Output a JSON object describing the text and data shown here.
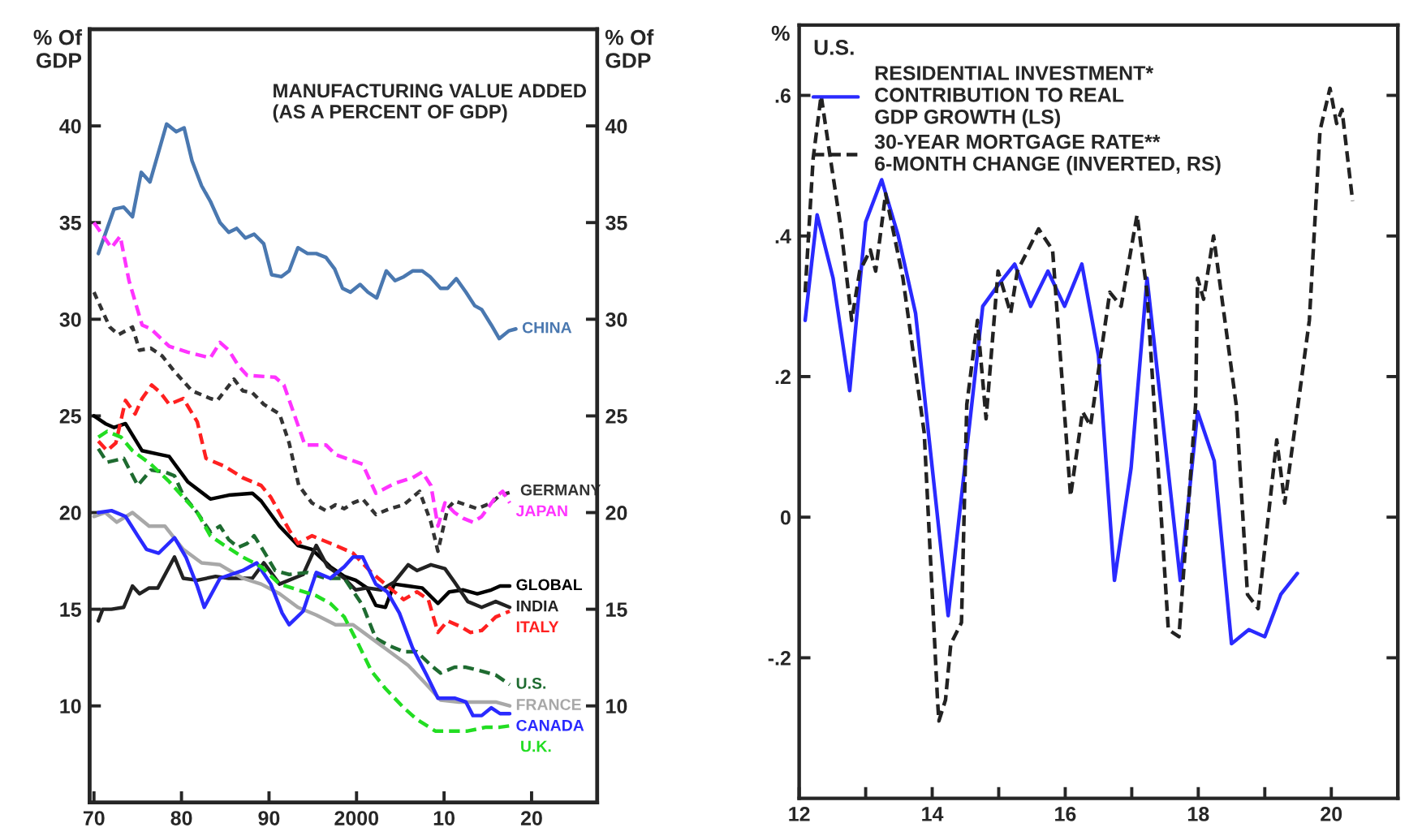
{
  "chart_data": [
    {
      "type": "line",
      "title": "MANUFACTURING VALUE ADDED\n(AS A PERCENT OF GDP)",
      "ylabel": "% Of\nGDP",
      "y2label": "% Of\nGDP",
      "xlim": [
        1969.5,
        2027.5
      ],
      "xticks": [
        {
          "value": 1970,
          "label": "70"
        },
        {
          "value": 1980,
          "label": "80"
        },
        {
          "value": 1990,
          "label": "90"
        },
        {
          "value": 2000,
          "label": "2000"
        },
        {
          "value": 2010,
          "label": "10"
        },
        {
          "value": 2020,
          "label": "20"
        }
      ],
      "ylim": [
        5,
        45
      ],
      "yticks": [
        10,
        15,
        20,
        25,
        30,
        35,
        40
      ],
      "y2lim": [
        5,
        45
      ],
      "y2ticks": [
        10,
        15,
        20,
        25,
        30,
        35,
        40
      ],
      "grid": false,
      "legend": false,
      "series": [
        {
          "name": "CHINA",
          "color": "#4a78b0",
          "line_style": "solid",
          "x": [
            1970.5,
            1972.3,
            1973.4,
            1974.4,
            1975.4,
            1976.4,
            1978.3,
            1979.4,
            1980.3,
            1981.2,
            1982.3,
            1983.3,
            1984.4,
            1985.4,
            1986.3,
            1987.3,
            1988.3,
            1989.4,
            1990.3,
            1991.4,
            1992.3,
            1993.3,
            1994.4,
            1995.4,
            1996.5,
            1997.5,
            1998.4,
            1999.3,
            2000.4,
            2001.3,
            2002.3,
            2003.4,
            2004.4,
            2005.4,
            2006.4,
            2007.5,
            2008.4,
            2009.6,
            2010.4,
            2011.4,
            2012.5,
            2013.5,
            2014.3,
            2015.4,
            2016.3,
            2017.4,
            2018.2
          ],
          "values": [
            33.4,
            35.7,
            35.8,
            35.3,
            37.6,
            37.1,
            40.1,
            39.7,
            39.9,
            38.2,
            36.9,
            36.1,
            35.0,
            34.5,
            34.7,
            34.2,
            34.4,
            33.9,
            32.3,
            32.2,
            32.5,
            33.7,
            33.4,
            33.4,
            33.2,
            32.6,
            31.6,
            31.4,
            31.8,
            31.4,
            31.1,
            32.5,
            32.0,
            32.2,
            32.5,
            32.5,
            32.2,
            31.6,
            31.6,
            32.1,
            31.4,
            30.7,
            30.5,
            29.7,
            29.0,
            29.4,
            29.5
          ]
        },
        {
          "name": "GERMANY",
          "color": "#333333",
          "line_style": "dotted",
          "x": [
            1970,
            1971.8,
            1972.8,
            1974.4,
            1975.2,
            1976.5,
            1977.8,
            1979.2,
            1981.2,
            1983.3,
            1984.1,
            1986,
            1987,
            1988.1,
            1989.4,
            1991.2,
            1992.3,
            1993.4,
            1994.9,
            1996.5,
            1997.6,
            1998.6,
            1999.6,
            2000.7,
            2002.2,
            2003.8,
            2005.4,
            2007.2,
            2008.5,
            2009.3,
            2010.4,
            2011.2,
            2012.5,
            2013.8,
            2015.4,
            2016.4,
            2018
          ],
          "values": [
            31.4,
            29.6,
            29.2,
            29.6,
            28.4,
            28.5,
            28.1,
            27.3,
            26.3,
            25.9,
            25.8,
            26.9,
            26.3,
            26.2,
            25.6,
            25.1,
            23.6,
            21.4,
            20.5,
            20.1,
            20.4,
            20.2,
            20.5,
            20.7,
            19.9,
            20.2,
            20.4,
            21.1,
            19.5,
            18.0,
            20.2,
            20.6,
            20.4,
            20.2,
            20.5,
            20.9,
            21.1
          ]
        },
        {
          "name": "JAPAN",
          "color": "#ff33ff",
          "line_style": "dashed",
          "x": [
            1970,
            1972,
            1973,
            1974,
            1975.5,
            1976.5,
            1978.6,
            1980.7,
            1983.3,
            1984.4,
            1985.4,
            1986.5,
            1987.5,
            1990.7,
            1991.7,
            1994.1,
            1996.5,
            1997.6,
            2000.7,
            2002.2,
            2004.3,
            2006.4,
            2007.5,
            2008.5,
            2009.3,
            2010.1,
            2011.2,
            2012.2,
            2013.3,
            2014.3,
            2015.9,
            2016.7,
            2017.5
          ],
          "values": [
            35.0,
            33.7,
            34.3,
            32.0,
            29.7,
            29.5,
            28.6,
            28.3,
            28.0,
            28.8,
            28.4,
            27.6,
            27.1,
            27.0,
            26.6,
            23.5,
            23.5,
            23.0,
            22.5,
            21.0,
            21.5,
            21.8,
            22.1,
            21.4,
            19.3,
            20.5,
            20.0,
            19.7,
            19.5,
            19.8,
            20.8,
            21.1,
            20.5
          ]
        },
        {
          "name": "GLOBAL",
          "color": "#000000",
          "line_style": "solid",
          "x": [
            1970,
            1971.3,
            1972.3,
            1973.6,
            1975.5,
            1977.6,
            1978.6,
            1980.7,
            1983.3,
            1985.4,
            1988.1,
            1989.1,
            1991.2,
            1993.3,
            1994.9,
            1997,
            1998.6,
            1999.9,
            2001.2,
            2002.2,
            2003.3,
            2004.3,
            2005.9,
            2007.5,
            2009.3,
            2010.6,
            2012.2,
            2013.8,
            2015.4,
            2016.4,
            2017.5
          ],
          "values": [
            25.0,
            24.6,
            24.4,
            24.6,
            23.2,
            23.0,
            22.9,
            21.6,
            20.7,
            20.9,
            21.0,
            20.6,
            19.3,
            18.3,
            18.1,
            17.2,
            16.7,
            16.5,
            16.1,
            15.2,
            15.1,
            16.3,
            16.2,
            16.1,
            15.3,
            15.9,
            16.0,
            15.8,
            16.0,
            16.2,
            16.2
          ]
        },
        {
          "name": "INDIA",
          "color": "#222222",
          "line_style": "solid",
          "x": [
            1970.5,
            1971,
            1972,
            1973.4,
            1974.4,
            1975.2,
            1976.3,
            1977.3,
            1979.2,
            1980.2,
            1981.8,
            1983.9,
            1985.4,
            1988.1,
            1989.4,
            1991.2,
            1993.9,
            1995.4,
            1996.7,
            1998.6,
            1999.9,
            2001.2,
            2002.8,
            2004.3,
            2005.9,
            2006.9,
            2008.5,
            2010.1,
            2011.2,
            2012.7,
            2014.3,
            2015.9,
            2017.5
          ],
          "values": [
            14.4,
            15.0,
            15.0,
            15.1,
            16.2,
            15.8,
            16.1,
            16.1,
            17.7,
            16.6,
            16.5,
            16.7,
            16.6,
            16.6,
            17.4,
            16.3,
            16.8,
            18.3,
            17.2,
            16.6,
            16.0,
            16.1,
            16.0,
            16.4,
            17.3,
            17.0,
            17.3,
            17.1,
            16.4,
            15.4,
            15.1,
            15.4,
            15.1
          ]
        },
        {
          "name": "ITALY",
          "color": "#ff2020",
          "line_style": "dashed",
          "x": [
            1970.5,
            1971.5,
            1972.5,
            1973.6,
            1974.7,
            1975.5,
            1976.6,
            1977.6,
            1978.6,
            1980.2,
            1981.8,
            1982.8,
            1984.9,
            1987,
            1989.1,
            1990.2,
            1992.3,
            1993.3,
            1994.9,
            1997.6,
            1999.6,
            2001.7,
            2003.8,
            2005.4,
            2006.9,
            2008.2,
            2009.3,
            2010.4,
            2011.9,
            2013,
            2014.3,
            2015.9,
            2017.5
          ],
          "values": [
            23.7,
            23.2,
            23.6,
            25.8,
            25.1,
            25.9,
            26.6,
            26.2,
            25.6,
            25.9,
            24.7,
            22.8,
            22.4,
            21.8,
            21.4,
            20.8,
            19.1,
            18.4,
            18.8,
            18.3,
            17.9,
            16.9,
            16.1,
            15.5,
            15.9,
            15.5,
            13.8,
            14.4,
            14.1,
            13.8,
            13.9,
            14.6,
            14.9
          ]
        },
        {
          "name": "U.S.",
          "color": "#1e6b30",
          "line_style": "dashed",
          "x": [
            1970.5,
            1971.5,
            1973.4,
            1975,
            1976.5,
            1978.1,
            1979.2,
            1980.2,
            1981.8,
            1983.3,
            1984.4,
            1985.4,
            1986.5,
            1987.5,
            1988.3,
            1989.4,
            1990.7,
            1992.3,
            1994.4,
            1996.5,
            1998.6,
            2000.7,
            2002.2,
            2003.8,
            2005.4,
            2006.9,
            2008.5,
            2009.6,
            2011.2,
            2012.5,
            2014.3,
            2015.9,
            2017.5
          ],
          "values": [
            23.3,
            22.6,
            22.8,
            21.4,
            22.2,
            22.1,
            21.9,
            20.9,
            20.0,
            19.0,
            19.3,
            18.6,
            18.2,
            18.4,
            18.8,
            18.0,
            17.0,
            16.8,
            16.9,
            16.6,
            16.6,
            15.2,
            13.5,
            13.1,
            12.8,
            12.8,
            12.1,
            11.7,
            12.0,
            12.0,
            11.8,
            11.6,
            11.1
          ]
        },
        {
          "name": "FRANCE",
          "color": "#a8a8a8",
          "line_style": "solid",
          "x": [
            1970,
            1971.3,
            1972.6,
            1974.4,
            1976.3,
            1978.1,
            1980.2,
            1982.3,
            1984.4,
            1987,
            1989.1,
            1991.2,
            1993.3,
            1995.4,
            1997.6,
            1999.6,
            2001.7,
            2003.8,
            2005.9,
            2008,
            2009.6,
            2011.7,
            2013.8,
            2015.9,
            2017.5
          ],
          "values": [
            19.8,
            20.0,
            19.5,
            20.0,
            19.3,
            19.3,
            18.1,
            17.4,
            17.3,
            16.6,
            16.3,
            15.8,
            15.1,
            14.7,
            14.2,
            14.2,
            13.5,
            12.8,
            12.1,
            11.1,
            10.3,
            10.2,
            10.2,
            10.2,
            10.0
          ]
        },
        {
          "name": "CANADA",
          "color": "#2a2aff",
          "line_style": "solid",
          "x": [
            1970.5,
            1972,
            1973.6,
            1975,
            1976,
            1977.4,
            1979.2,
            1980.5,
            1981.8,
            1982.6,
            1984.4,
            1987,
            1988.6,
            1990.2,
            1991.5,
            1992.3,
            1993.9,
            1995.4,
            1997,
            1998.6,
            1999.6,
            2000.7,
            2002.2,
            2003.5,
            2004.9,
            2006.4,
            2008,
            2009.3,
            2011.2,
            2012.5,
            2013.3,
            2014.3,
            2015.4,
            2016.4,
            2017.5
          ],
          "values": [
            20.0,
            20.1,
            19.8,
            18.8,
            18.1,
            17.9,
            18.7,
            17.7,
            16.2,
            15.1,
            16.6,
            17.0,
            17.4,
            16.3,
            14.8,
            14.2,
            14.9,
            16.9,
            16.6,
            17.2,
            17.7,
            17.7,
            16.3,
            15.9,
            14.8,
            13.0,
            11.6,
            10.4,
            10.4,
            10.2,
            9.5,
            9.5,
            9.9,
            9.6,
            9.6
          ]
        },
        {
          "name": "U.K.",
          "color": "#22dd22",
          "line_style": "dashed",
          "x": [
            1970.5,
            1971.5,
            1973.1,
            1974.4,
            1976.5,
            1978.6,
            1980.2,
            1981.8,
            1983.3,
            1984.9,
            1987,
            1989.1,
            1991.2,
            1993.3,
            1995.4,
            1997,
            1998.6,
            2000.2,
            2001.7,
            2003.3,
            2005.4,
            2006.9,
            2009,
            2010.6,
            2012.7,
            2014.8,
            2016.4,
            2018
          ],
          "values": [
            23.9,
            24.2,
            23.9,
            23.2,
            22.5,
            21.6,
            20.8,
            20.0,
            18.8,
            18.3,
            17.7,
            17.2,
            16.3,
            16.0,
            15.7,
            15.3,
            14.6,
            13.2,
            11.8,
            10.9,
            9.9,
            9.3,
            8.7,
            8.7,
            8.7,
            8.9,
            8.9,
            9.0
          ]
        }
      ]
    },
    {
      "type": "line",
      "ylabel": "%",
      "legend_title": "U.S.",
      "xlim": [
        2012,
        2021
      ],
      "xticks": [
        {
          "value": 2012,
          "label": "12"
        },
        {
          "value": 2013,
          "label": null
        },
        {
          "value": 2014,
          "label": "14"
        },
        {
          "value": 2015,
          "label": null
        },
        {
          "value": 2016,
          "label": "16"
        },
        {
          "value": 2017,
          "label": null
        },
        {
          "value": 2018,
          "label": "18"
        },
        {
          "value": 2019,
          "label": null
        },
        {
          "value": 2020,
          "label": "20"
        }
      ],
      "ylim": [
        -0.4,
        0.7
      ],
      "yticks": [
        {
          "value": 0.6,
          "label": ".6"
        },
        {
          "value": 0.4,
          "label": ".4"
        },
        {
          "value": 0.2,
          "label": ".2"
        },
        {
          "value": 0,
          "label": "0"
        },
        {
          "value": -0.2,
          "label": "-.2"
        }
      ],
      "grid": false,
      "legend": "top left",
      "series": [
        {
          "name": "RESIDENTIAL INVESTMENT*\nCONTRIBUTION TO REAL\nGDP GROWTH (LS)",
          "color": "#2a2aff",
          "line_style": "solid",
          "x": [
            2012.09,
            2012.27,
            2012.51,
            2012.76,
            2013.0,
            2013.24,
            2013.49,
            2013.75,
            2014.24,
            2014.76,
            2014.99,
            2015.24,
            2015.48,
            2015.74,
            2015.99,
            2016.25,
            2016.5,
            2016.74,
            2016.99,
            2017.23,
            2017.73,
            2017.99,
            2018.24,
            2018.5,
            2018.76,
            2019.0,
            2019.24,
            2019.49
          ],
          "values": [
            0.28,
            0.43,
            0.34,
            0.18,
            0.42,
            0.48,
            0.4,
            0.29,
            -0.14,
            0.3,
            0.33,
            0.36,
            0.3,
            0.35,
            0.3,
            0.36,
            0.23,
            -0.09,
            0.07,
            0.34,
            -0.09,
            0.15,
            0.08,
            -0.18,
            -0.16,
            -0.17,
            -0.11,
            -0.08
          ]
        },
        {
          "name": "30-YEAR MORTGAGE RATE**\n6-MONTH CHANGE (INVERTED, RS)",
          "color": "#222222",
          "line_style": "dashed",
          "x": [
            2012.09,
            2012.21,
            2012.33,
            2012.47,
            2012.63,
            2012.79,
            2012.91,
            2013.07,
            2013.15,
            2013.3,
            2013.56,
            2013.88,
            2014.08,
            2014.1,
            2014.2,
            2014.28,
            2014.44,
            2014.52,
            2014.68,
            2014.81,
            2014.99,
            2015.18,
            2015.28,
            2015.6,
            2015.81,
            2016.08,
            2016.26,
            2016.38,
            2016.67,
            2016.84,
            2017.08,
            2017.23,
            2017.55,
            2017.71,
            2017.96,
            2017.99,
            2018.08,
            2018.23,
            2018.57,
            2018.74,
            2018.9,
            2019.18,
            2019.3,
            2019.5,
            2019.67,
            2019.83,
            2019.98,
            2020.08,
            2020.16,
            2020.32
          ],
          "values": [
            0.32,
            0.51,
            0.6,
            0.51,
            0.41,
            0.28,
            0.35,
            0.38,
            0.35,
            0.46,
            0.34,
            0.12,
            -0.26,
            -0.29,
            -0.26,
            -0.18,
            -0.15,
            0.16,
            0.28,
            0.14,
            0.35,
            0.29,
            0.35,
            0.41,
            0.38,
            0.03,
            0.15,
            0.13,
            0.32,
            0.3,
            0.43,
            0.32,
            -0.16,
            -0.17,
            0.16,
            0.34,
            0.31,
            0.4,
            0.16,
            -0.11,
            -0.13,
            0.11,
            0.02,
            0.16,
            0.28,
            0.55,
            0.61,
            0.56,
            0.58,
            0.45
          ]
        }
      ]
    }
  ]
}
